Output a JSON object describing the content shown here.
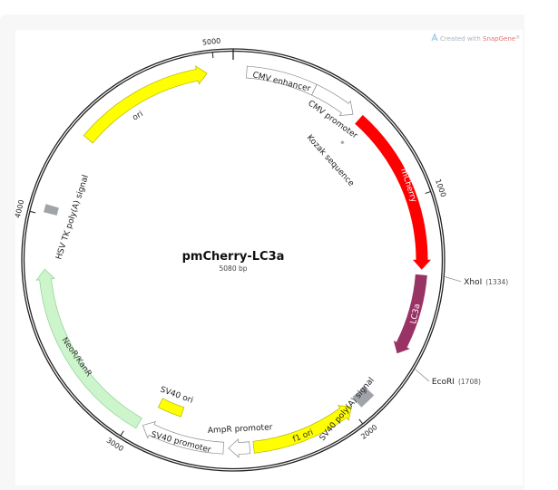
{
  "plasmid": {
    "name": "pmCherry-LC3a",
    "length_label": "5080 bp",
    "length_bp": 5080
  },
  "watermark": {
    "prefix": "Created with ",
    "brand": "SnapGene",
    "suffix": "®"
  },
  "ticks": [
    {
      "bp": 1000,
      "label": "1000"
    },
    {
      "bp": 2000,
      "label": "2000"
    },
    {
      "bp": 3000,
      "label": "3000"
    },
    {
      "bp": 4000,
      "label": "4000"
    },
    {
      "bp": 5000,
      "label": "5000"
    }
  ],
  "sites": [
    {
      "name": "XhoI",
      "pos_label": "(1334)",
      "bp": 1334
    },
    {
      "name": "EcoRI",
      "pos_label": "(1708)",
      "bp": 1708
    }
  ],
  "features": [
    {
      "id": "cmv-enhancer",
      "label": "CMV enhancer",
      "start": 58,
      "end": 359,
      "strand": "box",
      "track": "outer",
      "color": "#ffffff"
    },
    {
      "id": "cmv-promoter",
      "label": "CMV promoter",
      "start": 359,
      "end": 556,
      "strand": "forward",
      "track": "outer",
      "color": "#ffffff"
    },
    {
      "id": "kozak",
      "label": "Kozak sequence",
      "start": 598,
      "end": 612,
      "strand": "box",
      "track": "inner",
      "color": "#a0a4a9"
    },
    {
      "id": "mcherry",
      "label": "mCherry",
      "start": 589,
      "end": 1312,
      "strand": "forward",
      "track": "outer",
      "color": "#ff0000"
    },
    {
      "id": "lc3a",
      "label": "LC3a",
      "start": 1334,
      "end": 1690,
      "strand": "forward",
      "track": "outer",
      "color": "#993366"
    },
    {
      "id": "sv40-polya",
      "label": "SV40 poly(A) signal",
      "start": 1890,
      "end": 1962,
      "strand": "box",
      "track": "outer",
      "color": "#a0a4a9"
    },
    {
      "id": "f1-ori",
      "label": "f1 ori",
      "start": 1993,
      "end": 2452,
      "strand": "reverse",
      "track": "outer",
      "color": "#ffff00"
    },
    {
      "id": "ampr-promoter",
      "label": "AmpR promoter",
      "start": 2469,
      "end": 2560,
      "strand": "forward",
      "track": "outer",
      "color": "#ffffff"
    },
    {
      "id": "sv40-promoter",
      "label": "SV40 promoter",
      "start": 2582,
      "end": 2944,
      "strand": "forward",
      "track": "outer",
      "color": "#ffffff"
    },
    {
      "id": "sv40-ori",
      "label": "SV40 ori",
      "start": 2800,
      "end": 2920,
      "strand": "box",
      "track": "inner",
      "color": "#ffff00"
    },
    {
      "id": "neor-kanr",
      "label": "NeoR/KanR",
      "start": 2963,
      "end": 3770,
      "strand": "forward",
      "track": "outer",
      "color": "#ccf5cc"
    },
    {
      "id": "hsv-tk-polya",
      "label": "HSV TK poly(A) signal",
      "start": 4010,
      "end": 4045,
      "strand": "box",
      "track": "outer",
      "color": "#a0a4a9"
    },
    {
      "id": "ori",
      "label": "ori",
      "start": 4372,
      "end": 4968,
      "strand": "forward",
      "track": "outer",
      "color": "#ffff00"
    }
  ]
}
